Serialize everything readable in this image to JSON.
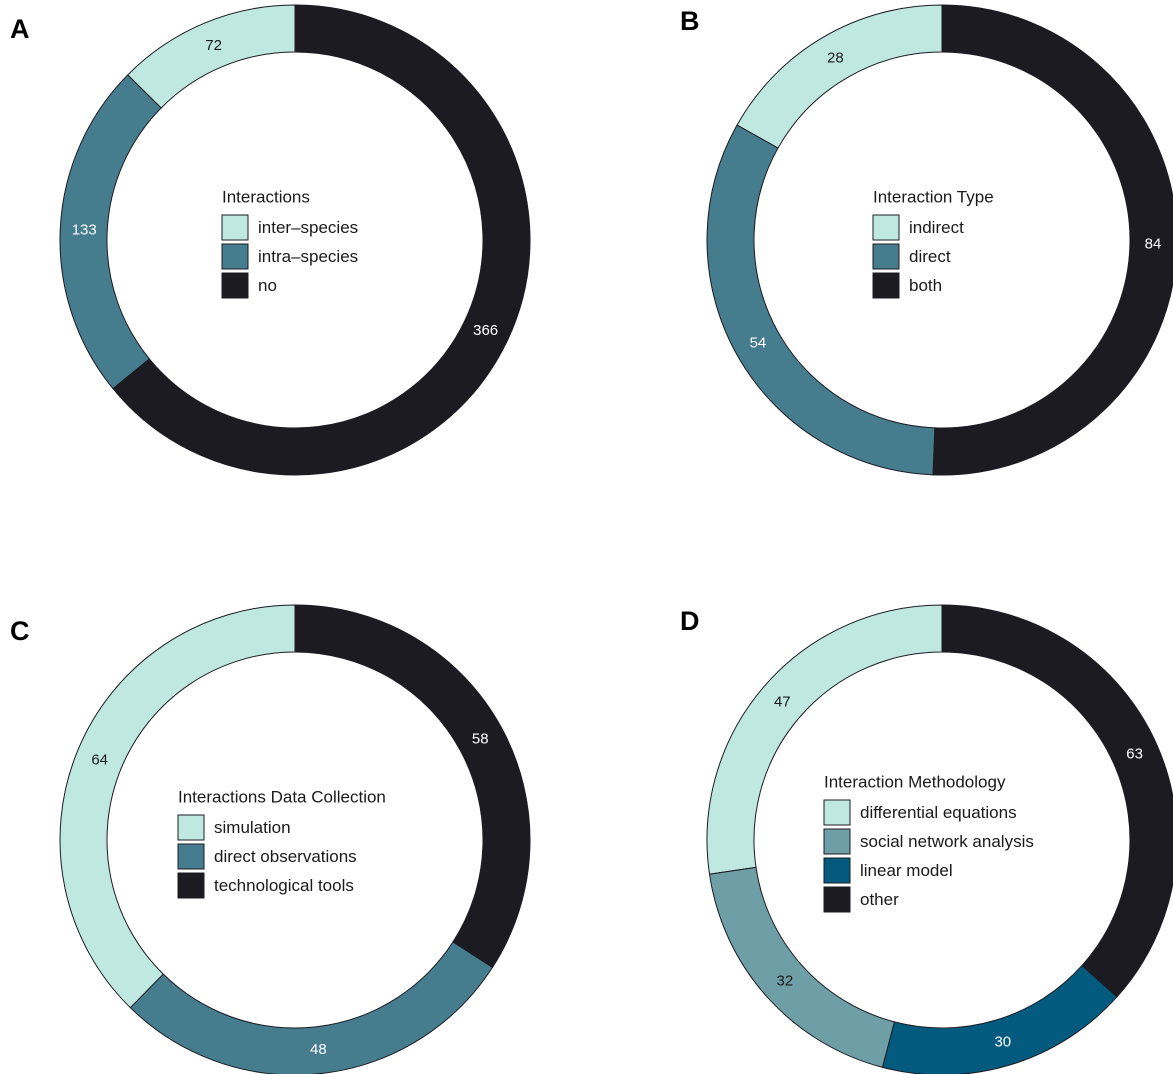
{
  "chart_data": [
    {
      "type": "donut",
      "panel": "A",
      "legend_title": "Interactions",
      "legend_placement": "center",
      "categories": [
        "inter–species",
        "intra–species",
        "no"
      ],
      "values": [
        72,
        133,
        366
      ],
      "colors": [
        "#bfe8e1",
        "#457d8f",
        "#1c1b22"
      ],
      "label_colors": [
        "#1a1a1a",
        "#ffffff",
        "#ffffff"
      ]
    },
    {
      "type": "donut",
      "panel": "B",
      "legend_title": "Interaction Type",
      "legend_placement": "center",
      "categories": [
        "indirect",
        "direct",
        "both"
      ],
      "values": [
        28,
        54,
        84
      ],
      "colors": [
        "#bfe8e1",
        "#457d8f",
        "#1c1b22"
      ],
      "label_colors": [
        "#1a1a1a",
        "#ffffff",
        "#ffffff"
      ]
    },
    {
      "type": "donut",
      "panel": "C",
      "legend_title": "Interactions Data Collection",
      "legend_placement": "center",
      "categories": [
        "simulation",
        "direct observations",
        "technological tools"
      ],
      "values": [
        64,
        48,
        58
      ],
      "colors": [
        "#bfe8e1",
        "#457d8f",
        "#1c1b22"
      ],
      "label_colors": [
        "#1a1a1a",
        "#ffffff",
        "#ffffff"
      ]
    },
    {
      "type": "donut",
      "panel": "D",
      "legend_title": "Interaction Methodology",
      "legend_placement": "center",
      "categories": [
        "differential equations",
        "social network analysis",
        "linear model",
        "other"
      ],
      "values": [
        47,
        32,
        30,
        63
      ],
      "colors": [
        "#bfe8e1",
        "#6e9ea6",
        "#025b7f",
        "#1c1b22"
      ],
      "label_colors": [
        "#1a1a1a",
        "#1a1a1a",
        "#ffffff",
        "#ffffff"
      ]
    }
  ]
}
